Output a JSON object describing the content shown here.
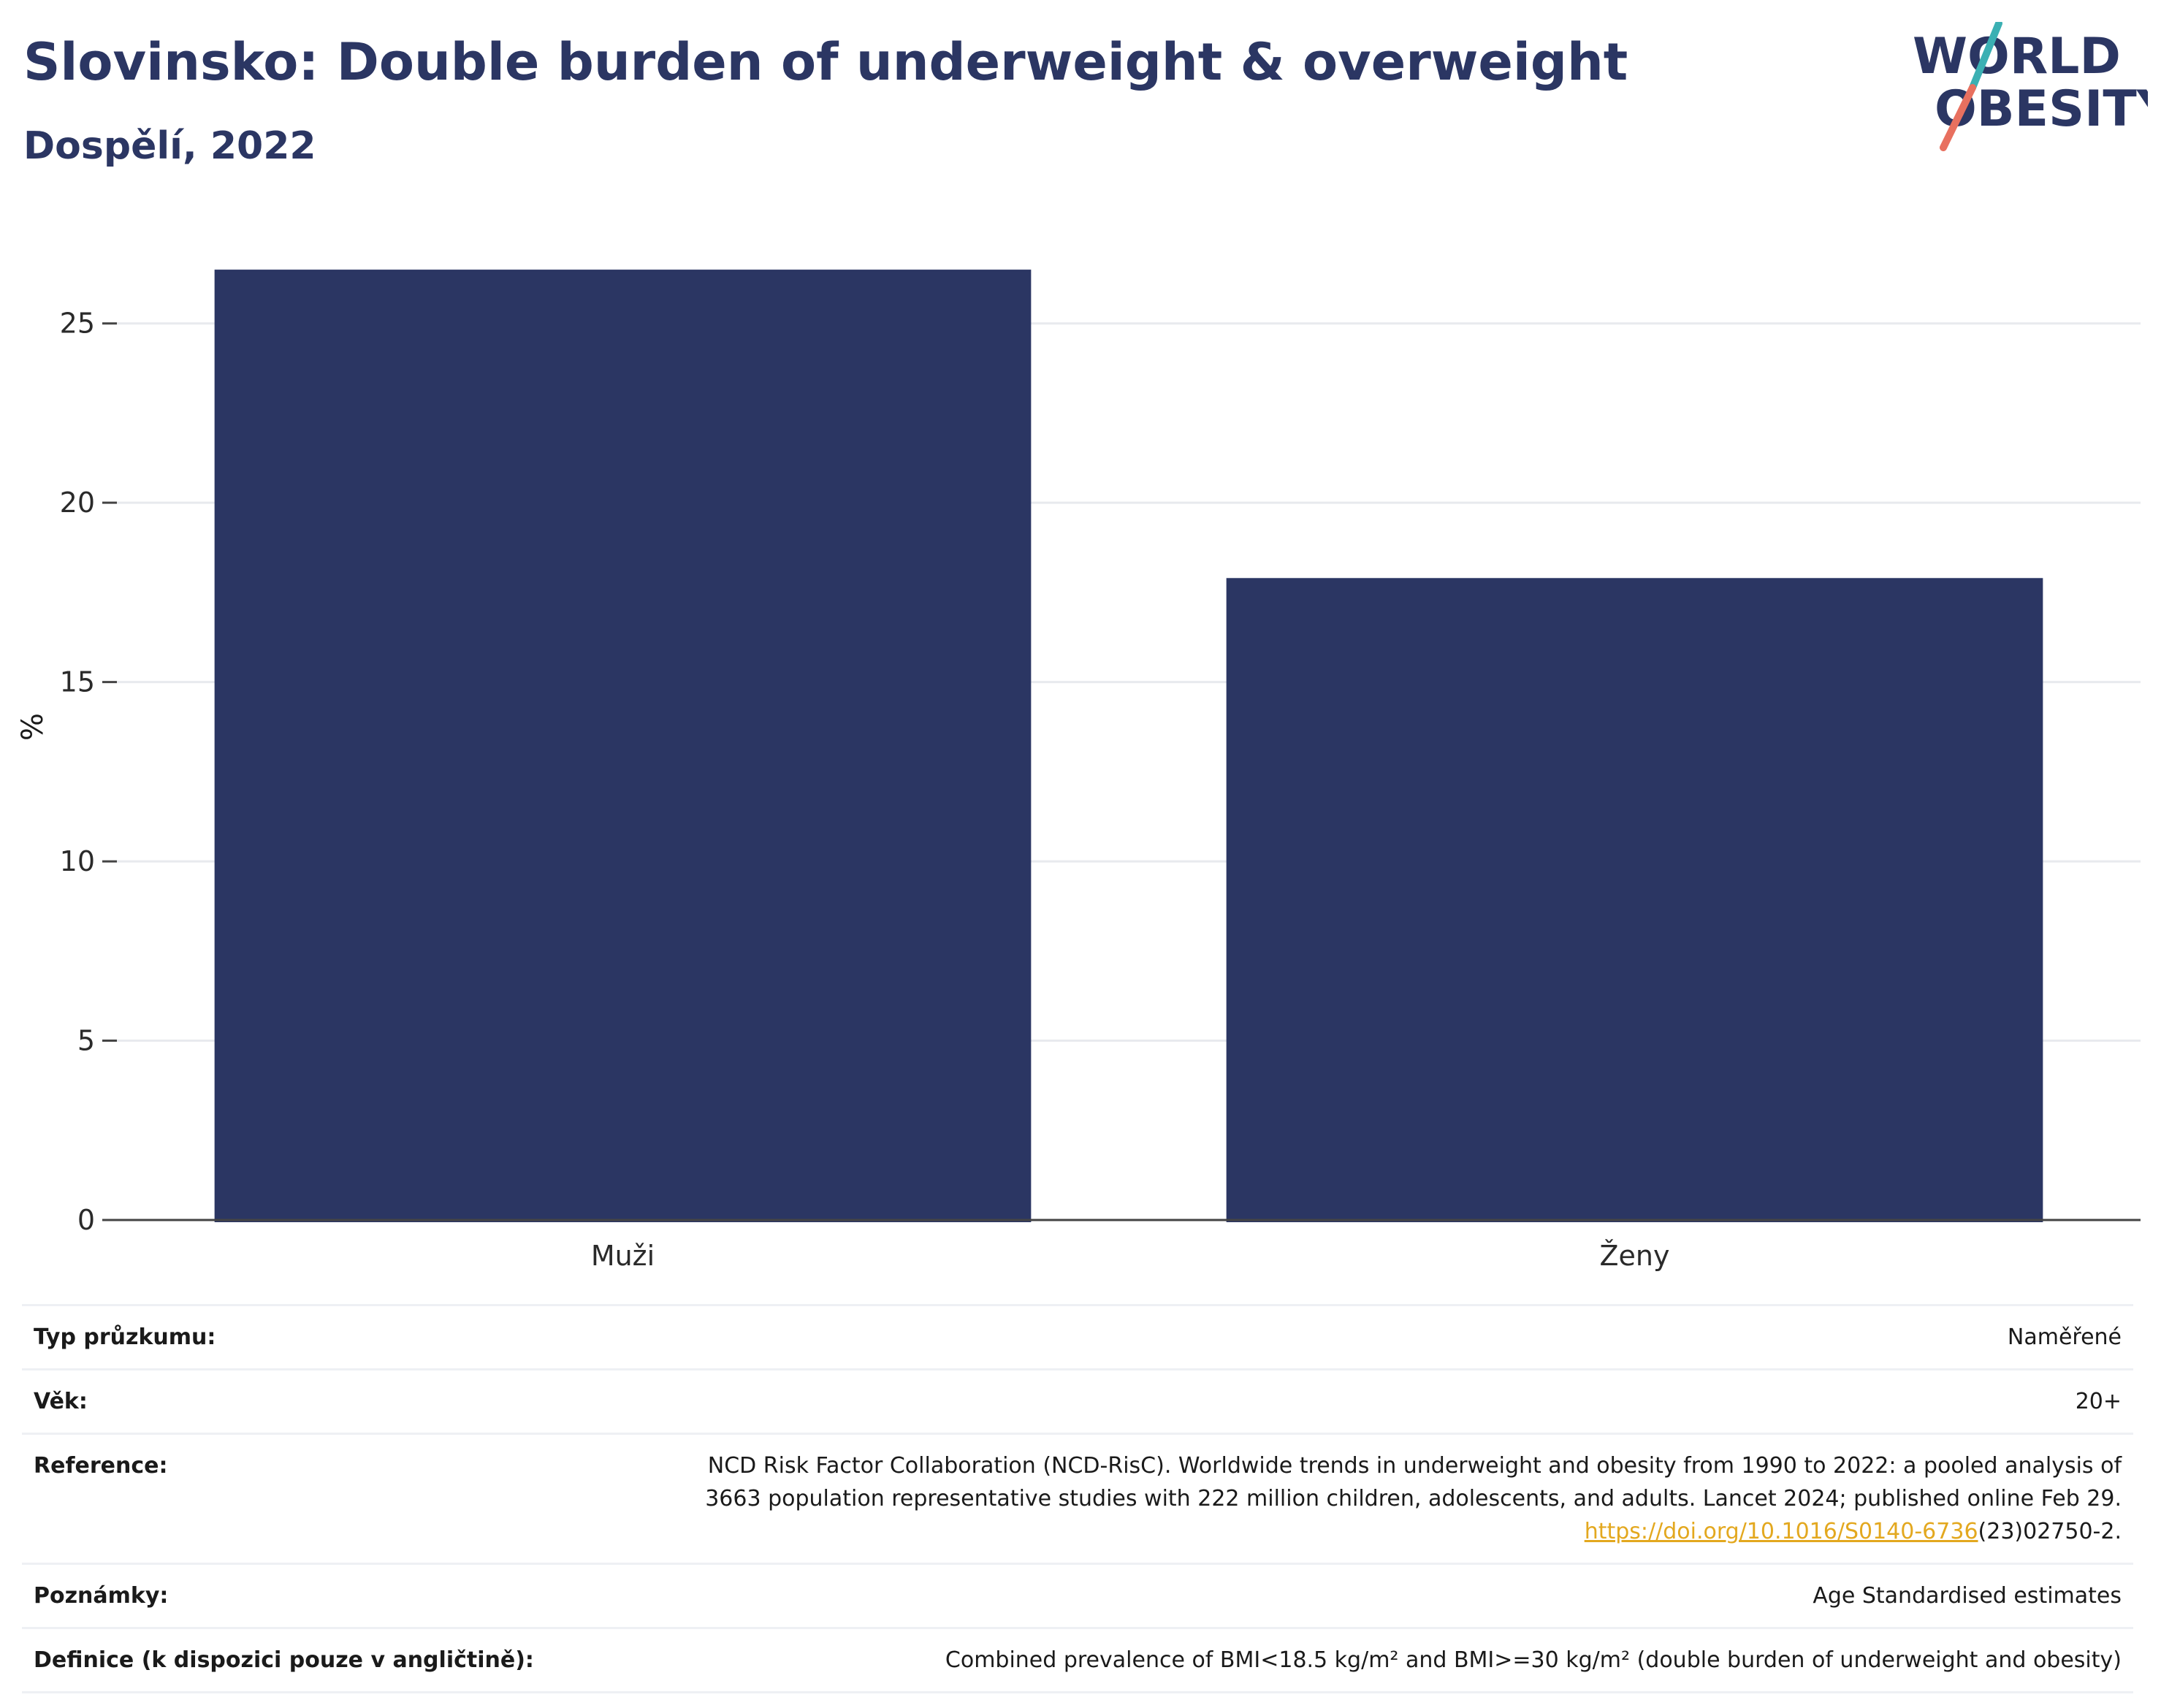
{
  "header": {
    "title": "Slovinsko: Double burden of underweight & overweight",
    "subtitle": "Dospělí, 2022"
  },
  "logo": {
    "line1": "WORLD",
    "line2": "OBESITY"
  },
  "colors": {
    "bar": "#2b3663",
    "text": "#2b3663",
    "logo_teal": "#3bb0b3",
    "logo_coral": "#e8705f",
    "link": "#e3a81f",
    "grid": "#e8eaee"
  },
  "chart_data": {
    "type": "bar",
    "categories": [
      "Muži",
      "Ženy"
    ],
    "values": [
      26.5,
      17.9
    ],
    "ylabel": "%",
    "xlabel": "",
    "ylim": [
      0,
      27.5
    ],
    "yticks": [
      0,
      5,
      10,
      15,
      20,
      25
    ],
    "grid": true
  },
  "info": {
    "survey_type": {
      "label": "Typ průzkumu:",
      "value": "Naměřené"
    },
    "age": {
      "label": "Věk:",
      "value": "20+"
    },
    "reference": {
      "label": "Reference:",
      "line1": "NCD Risk Factor Collaboration (NCD-RisC). Worldwide trends in underweight and obesity from 1990 to 2022: a pooled analysis of",
      "line2": "3663 population representative studies with 222 million children, adolescents, and adults. Lancet 2024; published online Feb 29.",
      "link": "https://doi.org/10.1016/S0140-6736",
      "suffix": "(23)02750-2."
    },
    "notes": {
      "label": "Poznámky:",
      "value": "Age Standardised estimates"
    },
    "definition": {
      "label": "Definice (k dispozici pouze v angličtině):",
      "value": "Combined prevalence of BMI<18.5 kg/m² and BMI>=30 kg/m² (double burden of underweight and obesity)"
    }
  }
}
